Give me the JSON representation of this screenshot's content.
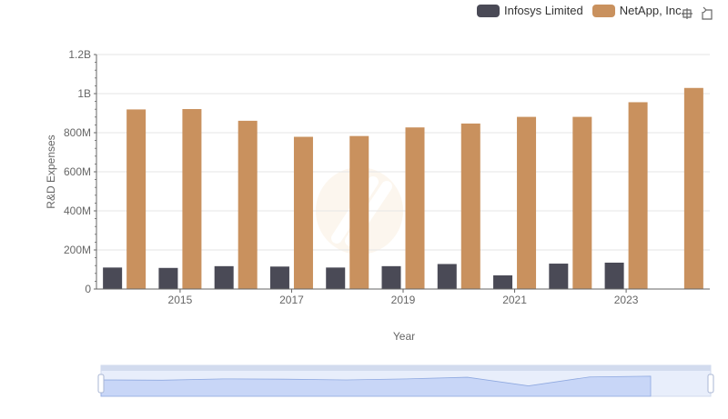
{
  "chart_data": {
    "type": "bar",
    "title": "",
    "xlabel": "Year",
    "ylabel": "R&D Expenses",
    "ylim": [
      0,
      1200000000
    ],
    "y_ticks": [
      "0",
      "200M",
      "400M",
      "600M",
      "800M",
      "1B",
      "1.2B"
    ],
    "categories": [
      "2014",
      "2015",
      "2016",
      "2017",
      "2018",
      "2019",
      "2020",
      "2021",
      "2022",
      "2023",
      "2024"
    ],
    "x_tick_labels": [
      "2015",
      "2017",
      "2019",
      "2021",
      "2023"
    ],
    "series": [
      {
        "name": "Infosys Limited",
        "color": "#4a4a56",
        "values": [
          110000000,
          108000000,
          117000000,
          115000000,
          110000000,
          117000000,
          128000000,
          70000000,
          130000000,
          135000000,
          null
        ]
      },
      {
        "name": "NetApp, Inc.",
        "color": "#c9915e",
        "values": [
          919000000,
          921000000,
          861000000,
          779000000,
          783000000,
          827000000,
          847000000,
          881000000,
          881000000,
          956000000,
          1029000000
        ]
      }
    ],
    "grid": true,
    "legend_position": "top-right"
  },
  "legend": {
    "items": [
      {
        "label": "Infosys Limited",
        "color": "#4a4a56"
      },
      {
        "label": "NetApp, Inc.",
        "color": "#c9915e"
      }
    ]
  },
  "toolbox": {
    "zoom_icon": "zoom-icon",
    "restore_icon": "restore-icon"
  }
}
